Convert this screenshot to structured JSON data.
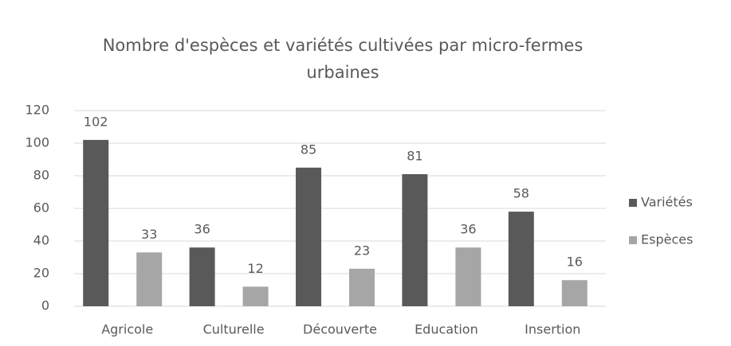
{
  "chart_data": {
    "type": "bar",
    "title": "Nombre d'espèces et variétés cultivées par micro-fermes urbaines",
    "categories": [
      "Agricole",
      "Culturelle",
      "Découverte",
      "Education",
      "Insertion"
    ],
    "series": [
      {
        "name": "Variétés",
        "color": "#595959",
        "values": [
          102,
          36,
          85,
          81,
          58
        ]
      },
      {
        "name": "Espèces",
        "color": "#a6a6a6",
        "values": [
          33,
          12,
          23,
          36,
          16
        ]
      }
    ],
    "ylim": [
      0,
      120
    ],
    "yticks": [
      0,
      20,
      40,
      60,
      80,
      100,
      120
    ],
    "grid": true,
    "legend": "right"
  }
}
